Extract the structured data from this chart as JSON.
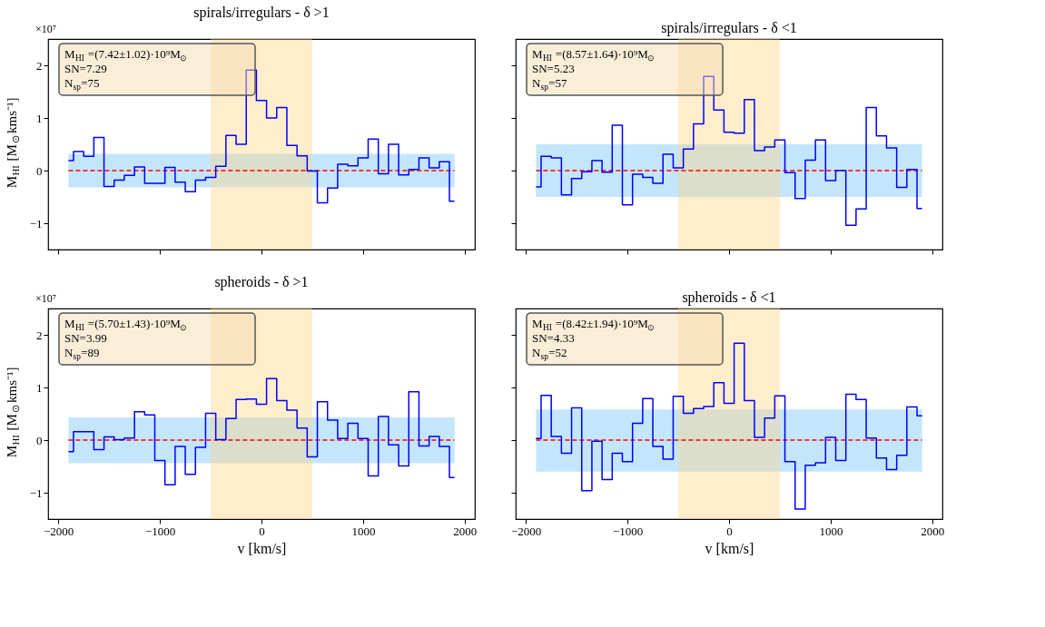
{
  "chart_data": [
    {
      "type": "step",
      "title": "spirals/irregulars - δ >1",
      "ylabel": "M$_{HI}$[M$_{⊙}$kms⁻¹]",
      "xlim": [
        -2100,
        2100
      ],
      "xticks": [
        -2000,
        -1000,
        0,
        1000,
        2000
      ],
      "ylim": [
        -1.5,
        2.5
      ],
      "yticks": [
        -1,
        0,
        1,
        2
      ],
      "tick_labels": "y",
      "grid": false,
      "x": [
        -1900,
        -1800,
        -1700,
        -1600,
        -1500,
        -1400,
        -1300,
        -1200,
        -1100,
        -1000,
        -900,
        -800,
        -700,
        -600,
        -500,
        -400,
        -300,
        -200,
        -100,
        0,
        100,
        200,
        300,
        400,
        500,
        600,
        700,
        800,
        900,
        1000,
        1100,
        1200,
        1300,
        1400,
        1500,
        1600,
        1700,
        1800,
        1900
      ],
      "series": [
        {
          "color": "#0000ff",
          "values": [
            0.19,
            0.36,
            0.27,
            0.63,
            -0.3,
            -0.18,
            -0.09,
            0.07,
            -0.24,
            -0.24,
            0.06,
            -0.22,
            -0.4,
            -0.18,
            -0.13,
            0.08,
            0.67,
            0.5,
            1.91,
            1.33,
            1.0,
            1.2,
            0.48,
            0.28,
            -0.01,
            -0.61,
            -0.33,
            0.12,
            0.09,
            0.24,
            0.6,
            -0.06,
            0.5,
            -0.08,
            0.02,
            0.24,
            0.05,
            0.17,
            -0.58
          ]
        }
      ],
      "bands": [
        {
          "axis": "y",
          "from": -0.32,
          "to": 0.32,
          "color": "#87cefa"
        },
        {
          "axis": "x",
          "from": -500,
          "to": 500,
          "color": "#ffd27f"
        }
      ],
      "ref_lines": [
        {
          "axis": "y",
          "value": 0,
          "color": "#ff0000",
          "line_style": "dashed"
        }
      ],
      "annotations": [
        "M$_{HI}$=(7.42±1.02)·10⁹M$_{⊙}$",
        "SN=7.29",
        "N$_{sp}$=75",
        "×10⁷"
      ]
    },
    {
      "type": "step",
      "title": "spirals/irregulars - δ <1",
      "xlim": [
        -2100,
        2100
      ],
      "xticks": [
        -2000,
        -1000,
        0,
        1000,
        2000
      ],
      "ylim": [
        -1.5,
        2.5
      ],
      "yticks": [
        -1,
        0,
        1,
        2
      ],
      "tick_labels": false,
      "grid": false,
      "x": [
        -1900,
        -1800,
        -1700,
        -1600,
        -1500,
        -1400,
        -1300,
        -1200,
        -1100,
        -1000,
        -900,
        -800,
        -700,
        -600,
        -500,
        -400,
        -300,
        -200,
        -100,
        0,
        100,
        200,
        300,
        400,
        500,
        600,
        700,
        800,
        900,
        1000,
        1100,
        1200,
        1300,
        1400,
        1500,
        1600,
        1700,
        1800,
        1900
      ],
      "series": [
        {
          "color": "#0000ff",
          "values": [
            -0.31,
            0.27,
            0.24,
            -0.46,
            -0.15,
            -0.02,
            0.19,
            -0.03,
            0.86,
            -0.65,
            -0.07,
            -0.13,
            -0.24,
            0.31,
            0.05,
            0.41,
            0.89,
            1.79,
            1.15,
            0.73,
            0.71,
            1.35,
            0.38,
            0.45,
            0.58,
            -0.04,
            -0.53,
            0.2,
            0.58,
            -0.19,
            0.0,
            -1.04,
            -0.73,
            1.2,
            0.66,
            0.43,
            -0.32,
            0.02,
            -0.72
          ]
        }
      ],
      "bands": [
        {
          "axis": "y",
          "from": -0.5,
          "to": 0.5,
          "color": "#87cefa"
        },
        {
          "axis": "x",
          "from": -500,
          "to": 500,
          "color": "#ffd27f"
        }
      ],
      "ref_lines": [
        {
          "axis": "y",
          "value": 0,
          "color": "#ff0000",
          "line_style": "dashed"
        }
      ],
      "annotations": [
        "M$_{HI}$=(8.57±1.64)·10⁹M$_{⊙}$",
        "SN=5.23",
        "N$_{sp}$=57"
      ]
    },
    {
      "type": "step",
      "title": "spheroids - δ >1",
      "xlabel": "v [km/s]",
      "ylabel": "M$_{HI}$[M$_{⊙}$kms⁻¹]",
      "xlim": [
        -2100,
        2100
      ],
      "xticks": [
        -2000,
        -1000,
        0,
        1000,
        2000
      ],
      "ylim": [
        -1.5,
        2.5
      ],
      "yticks": [
        -1,
        0,
        1,
        2
      ],
      "grid": false,
      "x": [
        -1900,
        -1800,
        -1700,
        -1600,
        -1500,
        -1400,
        -1300,
        -1200,
        -1100,
        -1000,
        -900,
        -800,
        -700,
        -600,
        -500,
        -400,
        -300,
        -200,
        -100,
        0,
        100,
        200,
        300,
        400,
        500,
        600,
        700,
        800,
        900,
        1000,
        1100,
        1200,
        1300,
        1400,
        1500,
        1600,
        1700,
        1800,
        1900
      ],
      "series": [
        {
          "color": "#0000ff",
          "values": [
            -0.22,
            0.16,
            0.16,
            -0.18,
            0.06,
            0.01,
            0.04,
            0.54,
            0.48,
            -0.39,
            -0.85,
            -0.12,
            -0.65,
            -0.14,
            0.51,
            0.01,
            0.41,
            0.77,
            0.78,
            0.68,
            1.17,
            0.75,
            0.57,
            0.23,
            -0.32,
            0.73,
            0.38,
            0.03,
            0.32,
            0.03,
            -0.68,
            0.45,
            -0.09,
            -0.49,
            0.92,
            -0.11,
            0.07,
            -0.12,
            -0.71
          ]
        }
      ],
      "bands": [
        {
          "axis": "y",
          "from": -0.44,
          "to": 0.43,
          "color": "#87cefa"
        },
        {
          "axis": "x",
          "from": -500,
          "to": 500,
          "color": "#ffd27f"
        }
      ],
      "ref_lines": [
        {
          "axis": "y",
          "value": 0,
          "color": "#ff0000",
          "line_style": "dashed"
        }
      ],
      "annotations": [
        "M$_{HI}$=(5.70±1.43)·10⁹M$_{⊙}$",
        "SN=3.99",
        "N$_{sp}$=89",
        "×10⁷"
      ]
    },
    {
      "type": "step",
      "title": "spheroids - δ <1",
      "xlabel": "v [km/s]",
      "xlim": [
        -2100,
        2100
      ],
      "xticks": [
        -2000,
        -1000,
        0,
        1000,
        2000
      ],
      "ylim": [
        -1.5,
        2.5
      ],
      "yticks": [
        -1,
        0,
        1,
        2
      ],
      "tick_labels": "x",
      "grid": false,
      "x": [
        -1900,
        -1800,
        -1700,
        -1600,
        -1500,
        -1400,
        -1300,
        -1200,
        -1100,
        -1000,
        -900,
        -800,
        -700,
        -600,
        -500,
        -400,
        -300,
        -200,
        -100,
        0,
        100,
        200,
        300,
        400,
        500,
        600,
        700,
        800,
        900,
        1000,
        1100,
        1200,
        1300,
        1400,
        1500,
        1600,
        1700,
        1800,
        1900
      ],
      "series": [
        {
          "color": "#0000ff",
          "values": [
            0.03,
            0.85,
            0.07,
            -0.25,
            0.61,
            -0.96,
            -0.02,
            -0.75,
            -0.25,
            -0.41,
            0.32,
            0.79,
            -0.12,
            -0.36,
            0.83,
            0.51,
            0.6,
            0.64,
            1.09,
            0.7,
            1.84,
            0.75,
            0.05,
            0.42,
            0.84,
            -0.41,
            -1.31,
            -0.48,
            -0.43,
            0.05,
            -0.39,
            0.87,
            0.77,
            0.04,
            -0.34,
            -0.56,
            -0.29,
            0.63,
            0.46
          ]
        }
      ],
      "bands": [
        {
          "axis": "y",
          "from": -0.6,
          "to": 0.58,
          "color": "#87cefa"
        },
        {
          "axis": "x",
          "from": -500,
          "to": 500,
          "color": "#ffd27f"
        }
      ],
      "ref_lines": [
        {
          "axis": "y",
          "value": 0,
          "color": "#ff0000",
          "line_style": "dashed"
        }
      ],
      "annotations": [
        "M$_{HI}$=(8.42±1.94)·10⁹M$_{⊙}$",
        "SN=4.33",
        "N$_{sp}$=52"
      ]
    }
  ]
}
